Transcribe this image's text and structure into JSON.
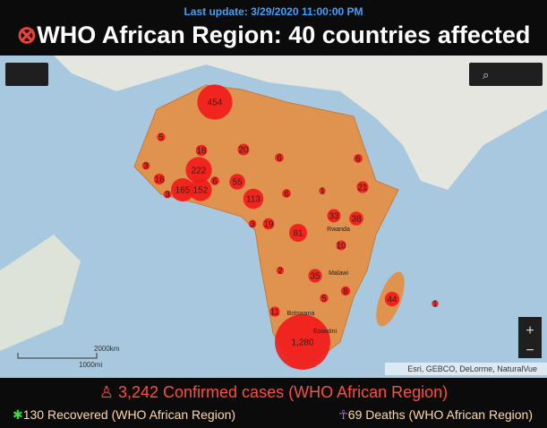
{
  "header": {
    "last_update": "Last update: 3/29/2020 11:00:00 PM",
    "title": "WHO African Region: 40 countries affected"
  },
  "map": {
    "bubbles": [
      {
        "value": 454
      },
      {
        "value": 5
      },
      {
        "value": 18
      },
      {
        "value": 20
      },
      {
        "value": 6
      },
      {
        "value": 6
      },
      {
        "value": 3
      },
      {
        "value": 222
      },
      {
        "value": 16
      },
      {
        "value": 165
      },
      {
        "value": 152
      },
      {
        "value": 6
      },
      {
        "value": 55
      },
      {
        "value": 113
      },
      {
        "value": 6
      },
      {
        "value": 1
      },
      {
        "value": 21
      },
      {
        "value": 3
      },
      {
        "value": 3
      },
      {
        "value": 19
      },
      {
        "value": 33
      },
      {
        "value": 38
      },
      {
        "value": 81
      },
      {
        "value": 10
      },
      {
        "value": 2
      },
      {
        "value": 35
      },
      {
        "value": 5
      },
      {
        "value": 8
      },
      {
        "value": 44
      },
      {
        "value": 1
      },
      {
        "value": 11
      },
      {
        "value": 1280,
        "label": "1,280"
      }
    ],
    "place_labels": [
      "Rwanda",
      "Malawi",
      "Botswana",
      "Eswatini"
    ],
    "scale": {
      "km": "2000km",
      "mi": "1000mi"
    },
    "attribution": "Esri, GEBCO, DeLorme, NaturalVue"
  },
  "stats": {
    "confirmed": "3,242 Confirmed cases (WHO African Region)",
    "recovered": "130 Recovered (WHO African Region)",
    "deaths": "69 Deaths (WHO African Region)"
  }
}
